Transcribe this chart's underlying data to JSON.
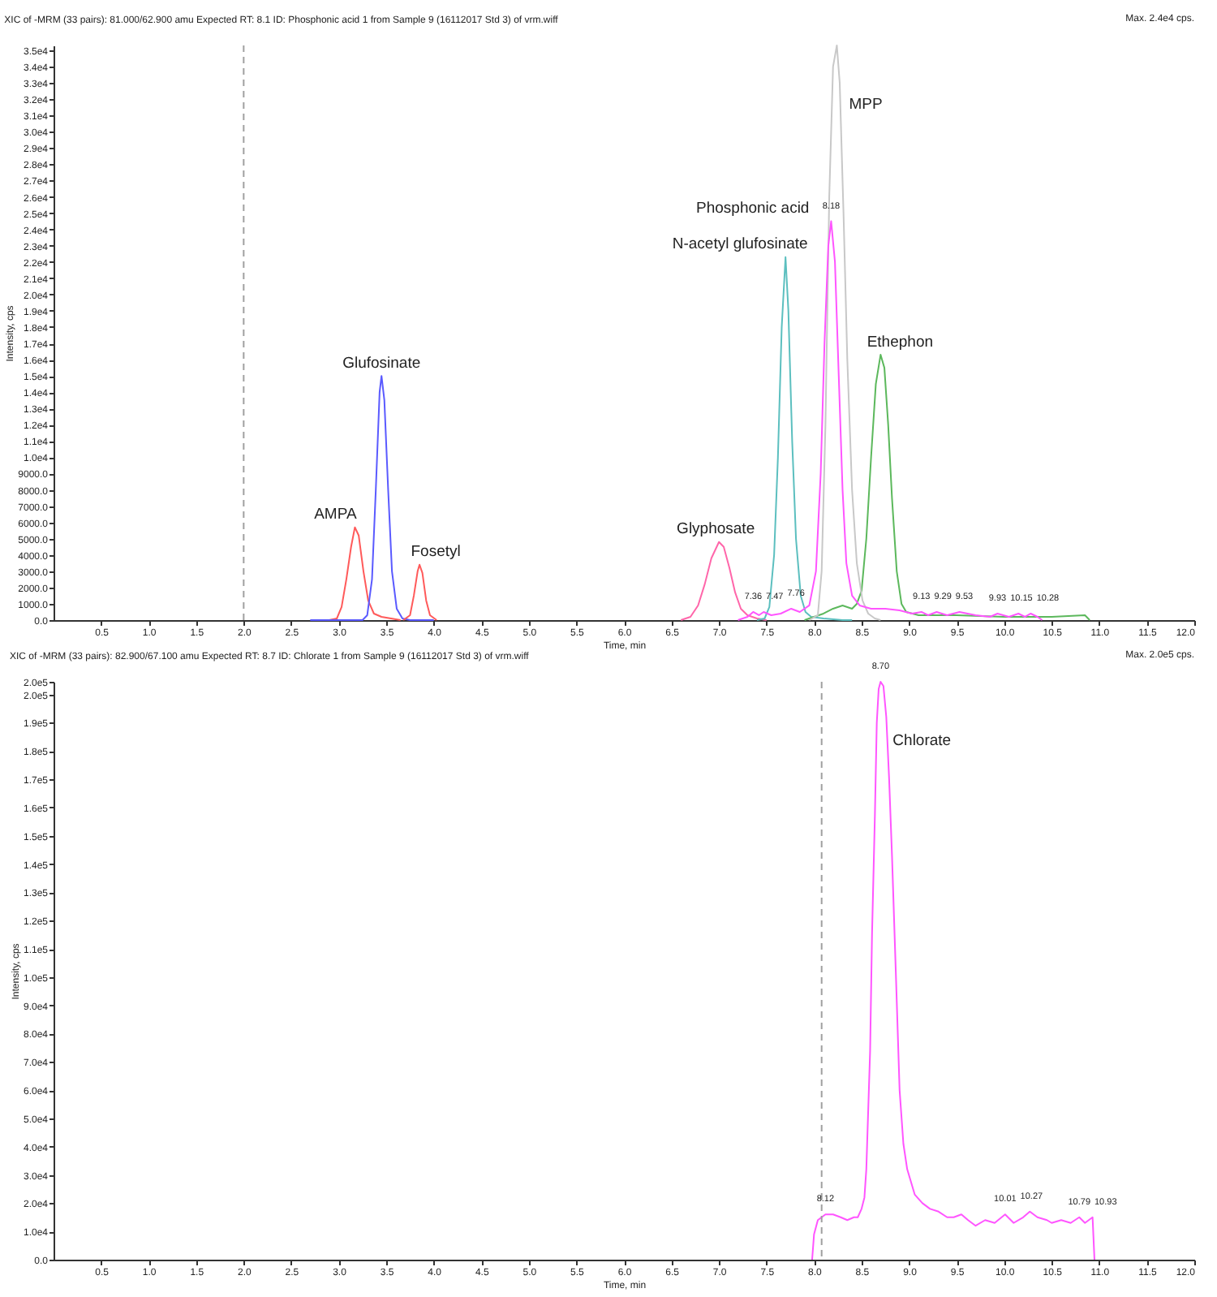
{
  "chart_data": [
    {
      "type": "line",
      "title": "XIC of -MRM (33 pairs): 81.000/62.900 amu Expected RT: 8.1 ID: Phosphonic acid 1 from Sample 9 (16112017 Std 3) of vrm.wiff",
      "xlabel": "Time, min",
      "ylabel": "Intensity, cps",
      "xlim": [
        0,
        12
      ],
      "xticks": [
        {
          "value": 0.5,
          "label": "0.5"
        },
        {
          "value": 1,
          "label": "1.0"
        },
        {
          "value": 1.5,
          "label": "1.5"
        },
        {
          "value": 2,
          "label": "2.0"
        },
        {
          "value": 2.5,
          "label": "2.5"
        },
        {
          "value": 3,
          "label": "3.0"
        },
        {
          "value": 3.5,
          "label": "3.5"
        },
        {
          "value": 4,
          "label": "4.0"
        },
        {
          "value": 4.5,
          "label": "4.5"
        },
        {
          "value": 5,
          "label": "5.0"
        },
        {
          "value": 5.5,
          "label": "5.5"
        },
        {
          "value": 6,
          "label": "6.0"
        },
        {
          "value": 6.5,
          "label": "6.5"
        },
        {
          "value": 7,
          "label": "7.0"
        },
        {
          "value": 7.5,
          "label": "7.5"
        },
        {
          "value": 8,
          "label": "8.0"
        },
        {
          "value": 8.5,
          "label": "8.5"
        },
        {
          "value": 9,
          "label": "9.0"
        },
        {
          "value": 9.5,
          "label": "9.5"
        },
        {
          "value": 10,
          "label": "10.0"
        },
        {
          "value": 10.5,
          "label": "10.5"
        },
        {
          "value": 11,
          "label": "11.0"
        },
        {
          "value": 11.5,
          "label": "11.5"
        },
        {
          "value": 12,
          "label": "12.0"
        }
      ],
      "ylim": [
        0,
        35300
      ],
      "yticks": [
        {
          "value": 0,
          "label": "0.0"
        },
        {
          "value": 1000,
          "label": "1000.0"
        },
        {
          "value": 2000,
          "label": "2000.0"
        },
        {
          "value": 3000,
          "label": "3000.0"
        },
        {
          "value": 4000,
          "label": "4000.0"
        },
        {
          "value": 5000,
          "label": "5000.0"
        },
        {
          "value": 6000,
          "label": "6000.0"
        },
        {
          "value": 7000,
          "label": "7000.0"
        },
        {
          "value": 8000,
          "label": "8000.0"
        },
        {
          "value": 9000,
          "label": "9000.0"
        },
        {
          "value": 10000,
          "label": "1.0e4"
        },
        {
          "value": 11000,
          "label": "1.1e4"
        },
        {
          "value": 12000,
          "label": "1.2e4"
        },
        {
          "value": 13000,
          "label": "1.3e4"
        },
        {
          "value": 14000,
          "label": "1.4e4"
        },
        {
          "value": 15000,
          "label": "1.5e4"
        },
        {
          "value": 16000,
          "label": "1.6e4"
        },
        {
          "value": 17000,
          "label": "1.7e4"
        },
        {
          "value": 18000,
          "label": "1.8e4"
        },
        {
          "value": 19000,
          "label": "1.9e4"
        },
        {
          "value": 20000,
          "label": "2.0e4"
        },
        {
          "value": 21000,
          "label": "2.1e4"
        },
        {
          "value": 22000,
          "label": "2.2e4"
        },
        {
          "value": 23000,
          "label": "2.3e4"
        },
        {
          "value": 24000,
          "label": "2.4e4"
        },
        {
          "value": 25000,
          "label": "2.5e4"
        },
        {
          "value": 26000,
          "label": "2.6e4"
        },
        {
          "value": 27000,
          "label": "2.7e4"
        },
        {
          "value": 28000,
          "label": "2.8e4"
        },
        {
          "value": 29000,
          "label": "2.9e4"
        },
        {
          "value": 30000,
          "label": "3.0e4"
        },
        {
          "value": 31000,
          "label": "3.1e4"
        },
        {
          "value": 32000,
          "label": "3.2e4"
        },
        {
          "value": 33000,
          "label": "3.3e4"
        },
        {
          "value": 34000,
          "label": "3.4e4"
        },
        {
          "value": 35000,
          "label": "3.5e4"
        }
      ],
      "series": [
        {
          "name": "AMPA",
          "color": "#ff5a5a",
          "x": [
            2.9,
            2.98,
            3.03,
            3.08,
            3.13,
            3.17,
            3.21,
            3.26,
            3.31,
            3.37,
            3.45,
            3.55,
            3.65
          ],
          "values": [
            0,
            100,
            800,
            2500,
            4500,
            5700,
            5200,
            3000,
            1200,
            400,
            200,
            100,
            0
          ]
        },
        {
          "name": "Glufosinate",
          "color": "#5a5aff",
          "x": [
            2.7,
            3.0,
            3.25,
            3.3,
            3.35,
            3.39,
            3.43,
            3.45,
            3.48,
            3.52,
            3.56,
            3.61,
            3.67,
            3.75,
            4.0
          ],
          "values": [
            0,
            0,
            0,
            300,
            2500,
            8000,
            14000,
            15000,
            13500,
            8000,
            3000,
            700,
            100,
            0,
            0
          ]
        },
        {
          "name": "Fosetyl",
          "color": "#ff5a5a",
          "x": [
            3.68,
            3.75,
            3.79,
            3.83,
            3.85,
            3.88,
            3.92,
            3.96,
            4.03
          ],
          "values": [
            0,
            300,
            1500,
            3000,
            3400,
            2900,
            1200,
            300,
            0
          ]
        },
        {
          "name": "Glyphosate",
          "color": "#ff66aa",
          "x": [
            6.6,
            6.7,
            6.78,
            6.85,
            6.92,
            7.0,
            7.05,
            7.11,
            7.17,
            7.23,
            7.3,
            7.4,
            7.5
          ],
          "values": [
            0,
            200,
            900,
            2200,
            3800,
            4800,
            4500,
            3200,
            1700,
            700,
            300,
            100,
            0
          ]
        },
        {
          "name": "N-acetyl glufosinate",
          "color": "#5cbfbf",
          "x": [
            7.4,
            7.48,
            7.53,
            7.58,
            7.62,
            7.66,
            7.7,
            7.73,
            7.77,
            7.81,
            7.86,
            7.91,
            7.97,
            8.1,
            8.3,
            8.4
          ],
          "values": [
            0,
            100,
            800,
            4000,
            10000,
            18000,
            22300,
            19000,
            11000,
            5000,
            1500,
            500,
            200,
            100,
            0,
            0
          ]
        },
        {
          "name": "Ethephon",
          "color": "#5cb85c",
          "x": [
            7.9,
            8.0,
            8.1,
            8.2,
            8.3,
            8.4,
            8.45,
            8.5,
            8.55,
            8.6,
            8.65,
            8.7,
            8.74,
            8.78,
            8.82,
            8.87,
            8.92,
            8.97,
            9.1,
            9.5,
            10.0,
            10.5,
            10.85,
            10.9
          ],
          "values": [
            0,
            200,
            400,
            700,
            900,
            700,
            1000,
            1800,
            5000,
            10000,
            14500,
            16300,
            15500,
            12000,
            7500,
            3000,
            1000,
            500,
            300,
            300,
            200,
            200,
            300,
            0
          ]
        },
        {
          "name": "MPP",
          "color": "#c8c8c8",
          "x": [
            7.95,
            8.04,
            8.08,
            8.12,
            8.16,
            8.2,
            8.24,
            8.27,
            8.31,
            8.35,
            8.4,
            8.45,
            8.51,
            8.57,
            8.64,
            8.7
          ],
          "values": [
            0,
            300,
            3000,
            12000,
            26000,
            34000,
            35300,
            33000,
            25000,
            16000,
            8000,
            3500,
            1200,
            400,
            100,
            0
          ]
        },
        {
          "name": "Phosphonic acid",
          "color": "#ff55ff",
          "x": [
            7.2,
            7.3,
            7.36,
            7.42,
            7.47,
            7.55,
            7.65,
            7.76,
            7.85,
            7.95,
            8.02,
            8.07,
            8.11,
            8.15,
            8.18,
            8.22,
            8.26,
            8.3,
            8.34,
            8.4,
            8.48,
            8.6,
            8.75,
            8.9,
            9.03,
            9.13,
            9.2,
            9.29,
            9.4,
            9.53,
            9.7,
            9.85,
            9.93,
            10.05,
            10.15,
            10.22,
            10.28,
            10.35,
            10.4
          ],
          "values": [
            0,
            200,
            500,
            300,
            500,
            300,
            400,
            700,
            500,
            900,
            3000,
            9000,
            17000,
            23000,
            24500,
            22000,
            15000,
            8000,
            3500,
            1500,
            900,
            700,
            700,
            600,
            400,
            500,
            300,
            500,
            300,
            500,
            300,
            200,
            400,
            200,
            400,
            200,
            400,
            200,
            0
          ]
        }
      ],
      "ref_lines": [
        {
          "axis": "x",
          "value": 2.0,
          "color": "#a0a0a0",
          "line_style": "dashed"
        }
      ],
      "annotations": [
        "Max. 2.4e4 cps.",
        {
          "text": "7.36",
          "x": 7.36,
          "y": 500
        },
        {
          "text": "7.47",
          "x": 7.47,
          "y": 500
        },
        {
          "text": "7.76",
          "x": 7.76,
          "y": 700
        },
        {
          "text": "8.18",
          "x": 8.18,
          "y": 24500
        },
        {
          "text": "9.13",
          "x": 9.13,
          "y": 500
        },
        {
          "text": "9.29",
          "x": 9.29,
          "y": 500
        },
        {
          "text": "9.53",
          "x": 9.53,
          "y": 500
        },
        {
          "text": "9.93",
          "x": 9.93,
          "y": 400
        },
        {
          "text": "10.15",
          "x": 10.15,
          "y": 400
        },
        {
          "text": "10.28",
          "x": 10.28,
          "y": 400
        }
      ]
    },
    {
      "type": "line",
      "title": "XIC of -MRM (33 pairs): 82.900/67.100 amu Expected RT: 8.7 ID: Chlorate 1 from Sample 9 (16112017 Std 3) of vrm.wiff",
      "xlabel": "Time, min",
      "ylabel": "Intensity, cps",
      "xlim": [
        0,
        12
      ],
      "xticks": [
        {
          "value": 0.5,
          "label": "0.5"
        },
        {
          "value": 1,
          "label": "1.0"
        },
        {
          "value": 1.5,
          "label": "1.5"
        },
        {
          "value": 2,
          "label": "2.0"
        },
        {
          "value": 2.5,
          "label": "2.5"
        },
        {
          "value": 3,
          "label": "3.0"
        },
        {
          "value": 3.5,
          "label": "3.5"
        },
        {
          "value": 4,
          "label": "4.0"
        },
        {
          "value": 4.5,
          "label": "4.5"
        },
        {
          "value": 5,
          "label": "5.0"
        },
        {
          "value": 5.5,
          "label": "5.5"
        },
        {
          "value": 6,
          "label": "6.0"
        },
        {
          "value": 6.5,
          "label": "6.5"
        },
        {
          "value": 7,
          "label": "7.0"
        },
        {
          "value": 7.5,
          "label": "7.5"
        },
        {
          "value": 8,
          "label": "8.0"
        },
        {
          "value": 8.5,
          "label": "8.5"
        },
        {
          "value": 9,
          "label": "9.0"
        },
        {
          "value": 9.5,
          "label": "9.5"
        },
        {
          "value": 10,
          "label": "10.0"
        },
        {
          "value": 10.5,
          "label": "10.5"
        },
        {
          "value": 11,
          "label": "11.0"
        },
        {
          "value": 11.5,
          "label": "11.5"
        },
        {
          "value": 12,
          "label": "12.0"
        }
      ],
      "ylim": [
        0,
        204500
      ],
      "yticks": [
        {
          "value": 0,
          "label": "0.0"
        },
        {
          "value": 10000,
          "label": "1.0e4"
        },
        {
          "value": 20000,
          "label": "2.0e4"
        },
        {
          "value": 30000,
          "label": "3.0e4"
        },
        {
          "value": 40000,
          "label": "4.0e4"
        },
        {
          "value": 50000,
          "label": "5.0e4"
        },
        {
          "value": 60000,
          "label": "6.0e4"
        },
        {
          "value": 70000,
          "label": "7.0e4"
        },
        {
          "value": 80000,
          "label": "8.0e4"
        },
        {
          "value": 90000,
          "label": "9.0e4"
        },
        {
          "value": 100000,
          "label": "1.0e5"
        },
        {
          "value": 110000,
          "label": "1.1e5"
        },
        {
          "value": 120000,
          "label": "1.2e5"
        },
        {
          "value": 130000,
          "label": "1.3e5"
        },
        {
          "value": 140000,
          "label": "1.4e5"
        },
        {
          "value": 150000,
          "label": "1.5e5"
        },
        {
          "value": 160000,
          "label": "1.6e5"
        },
        {
          "value": 170000,
          "label": "1.7e5"
        },
        {
          "value": 180000,
          "label": "1.8e5"
        },
        {
          "value": 190000,
          "label": "1.9e5"
        },
        {
          "value": 200000,
          "label": "2.0e5"
        },
        {
          "value": 204500,
          "label": "2.0e5"
        }
      ],
      "series": [
        {
          "name": "Chlorate",
          "color": "#ff55ff",
          "x": [
            7.98,
            8.0,
            8.04,
            8.08,
            8.12,
            8.2,
            8.28,
            8.35,
            8.42,
            8.46,
            8.5,
            8.53,
            8.55,
            8.59,
            8.61,
            8.64,
            8.66,
            8.68,
            8.7,
            8.73,
            8.76,
            8.79,
            8.82,
            8.86,
            8.9,
            8.94,
            8.98,
            9.06,
            9.14,
            9.22,
            9.31,
            9.4,
            9.47,
            9.55,
            9.62,
            9.7,
            9.8,
            9.9,
            10.01,
            10.1,
            10.2,
            10.27,
            10.35,
            10.45,
            10.5,
            10.6,
            10.7,
            10.79,
            10.85,
            10.93,
            10.95
          ],
          "values": [
            0,
            9000,
            14000,
            15000,
            16000,
            16000,
            15000,
            14000,
            15000,
            15000,
            18000,
            22000,
            32000,
            74000,
            115000,
            157000,
            190000,
            202000,
            204500,
            203000,
            192000,
            170000,
            143000,
            102000,
            60000,
            41000,
            32000,
            23000,
            20000,
            18000,
            17000,
            15000,
            15000,
            16000,
            14000,
            12000,
            14000,
            13000,
            16000,
            13000,
            15000,
            17000,
            15000,
            14000,
            13000,
            14000,
            13000,
            15000,
            13000,
            15000,
            0
          ]
        }
      ],
      "ref_lines": [
        {
          "axis": "x",
          "value": 8.08,
          "color": "#a0a0a0",
          "line_style": "dashed"
        }
      ],
      "annotations": [
        "Max. 2.0e5 cps.",
        {
          "text": "8.12",
          "x": 8.12,
          "y": 16000
        },
        {
          "text": "8.70",
          "x": 8.7,
          "y": 204500
        },
        {
          "text": "10.01",
          "x": 10.01,
          "y": 16000
        },
        {
          "text": "10.27",
          "x": 10.27,
          "y": 17000
        },
        {
          "text": "10.79",
          "x": 10.79,
          "y": 15000
        },
        {
          "text": "10.93",
          "x": 10.93,
          "y": 15000
        }
      ]
    }
  ]
}
